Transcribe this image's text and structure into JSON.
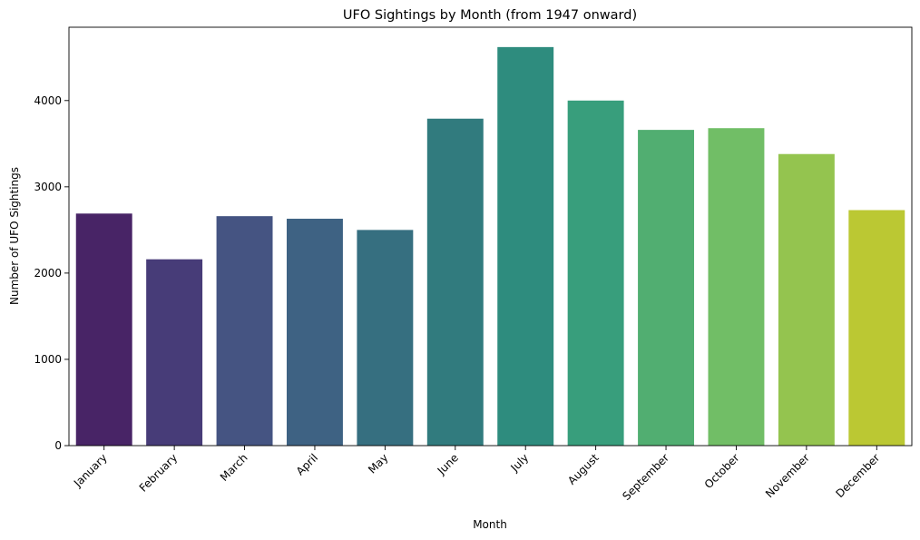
{
  "chart_data": {
    "type": "bar",
    "title": "UFO Sightings by Month (from 1947 onward)",
    "xlabel": "Month",
    "ylabel": "Number of UFO Sightings",
    "categories": [
      "January",
      "February",
      "March",
      "April",
      "May",
      "June",
      "July",
      "August",
      "September",
      "October",
      "November",
      "December"
    ],
    "values": [
      2690,
      2160,
      2660,
      2630,
      2500,
      3790,
      4620,
      4000,
      3660,
      3680,
      3380,
      2730
    ],
    "colors": [
      "#482466",
      "#473c78",
      "#455482",
      "#3e6283",
      "#366f80",
      "#317b7e",
      "#2e8c7e",
      "#389e7c",
      "#51ae71",
      "#71be66",
      "#94c44f",
      "#bbc833"
    ],
    "ylim": [
      0,
      4850
    ],
    "yticks": [
      0,
      1000,
      2000,
      3000,
      4000
    ],
    "grid": false,
    "legend": "none"
  }
}
